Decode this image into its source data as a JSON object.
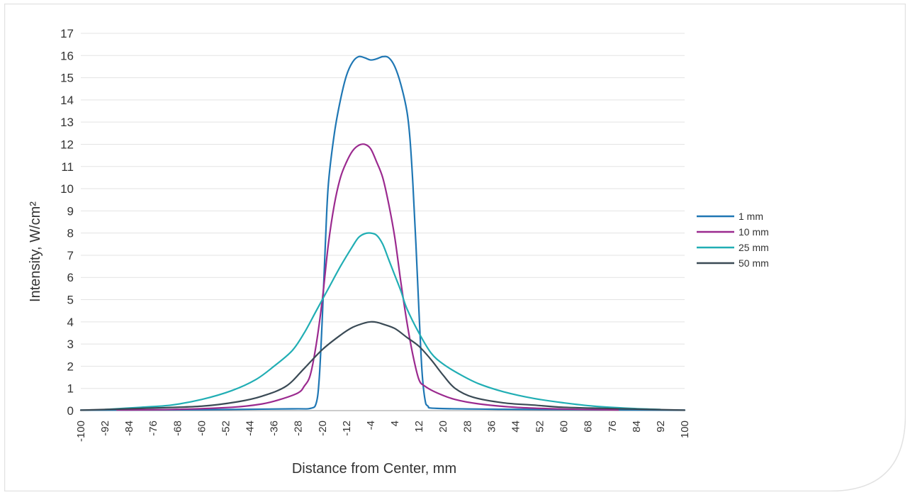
{
  "chart_data": {
    "type": "line",
    "title": "",
    "xlabel": "Distance from Center, mm",
    "ylabel": "Intensity, W/cm²",
    "xlim": [
      -100,
      100
    ],
    "ylim": [
      0,
      17
    ],
    "x_ticks": [
      -100,
      -92,
      -84,
      -76,
      -68,
      -60,
      -52,
      -44,
      -36,
      -28,
      -20,
      -12,
      -4,
      4,
      12,
      20,
      28,
      36,
      44,
      52,
      60,
      68,
      76,
      84,
      92,
      100
    ],
    "y_ticks": [
      0,
      1,
      2,
      3,
      4,
      5,
      6,
      7,
      8,
      9,
      10,
      11,
      12,
      13,
      14,
      15,
      16,
      17
    ],
    "grid": "horizontal",
    "legend_position": "right",
    "series": [
      {
        "name": "1 mm",
        "color": "#1F77B4",
        "points": [
          [
            -100,
            0.02
          ],
          [
            -60,
            0.04
          ],
          [
            -30,
            0.08
          ],
          [
            -24,
            0.1
          ],
          [
            -22,
            0.35
          ],
          [
            -21,
            1.5
          ],
          [
            -20,
            4.2
          ],
          [
            -19,
            7.5
          ],
          [
            -18,
            10.2
          ],
          [
            -16,
            12.5
          ],
          [
            -14,
            14.0
          ],
          [
            -12,
            15.1
          ],
          [
            -10,
            15.7
          ],
          [
            -8,
            15.95
          ],
          [
            -6,
            15.9
          ],
          [
            -4,
            15.8
          ],
          [
            -2,
            15.85
          ],
          [
            0,
            15.95
          ],
          [
            2,
            15.9
          ],
          [
            4,
            15.5
          ],
          [
            6,
            14.7
          ],
          [
            8,
            13.5
          ],
          [
            9,
            12.3
          ],
          [
            10,
            10.2
          ],
          [
            11,
            7.5
          ],
          [
            12,
            4.5
          ],
          [
            13,
            1.8
          ],
          [
            14,
            0.5
          ],
          [
            15,
            0.2
          ],
          [
            18,
            0.1
          ],
          [
            40,
            0.06
          ],
          [
            70,
            0.04
          ],
          [
            100,
            0.02
          ]
        ]
      },
      {
        "name": "10 mm",
        "color": "#9B2A8F",
        "points": [
          [
            -88,
            0.03
          ],
          [
            -70,
            0.05
          ],
          [
            -50,
            0.15
          ],
          [
            -40,
            0.3
          ],
          [
            -34,
            0.5
          ],
          [
            -28,
            0.8
          ],
          [
            -26,
            1.1
          ],
          [
            -24,
            1.6
          ],
          [
            -22,
            3.0
          ],
          [
            -20,
            5.0
          ],
          [
            -18,
            7.5
          ],
          [
            -16,
            9.3
          ],
          [
            -14,
            10.5
          ],
          [
            -12,
            11.2
          ],
          [
            -10,
            11.7
          ],
          [
            -8,
            11.95
          ],
          [
            -6,
            12.0
          ],
          [
            -4,
            11.8
          ],
          [
            -2,
            11.2
          ],
          [
            0,
            10.5
          ],
          [
            2,
            9.3
          ],
          [
            4,
            7.8
          ],
          [
            6,
            5.8
          ],
          [
            8,
            4.0
          ],
          [
            10,
            2.5
          ],
          [
            12,
            1.4
          ],
          [
            14,
            1.1
          ],
          [
            18,
            0.8
          ],
          [
            24,
            0.5
          ],
          [
            32,
            0.3
          ],
          [
            44,
            0.15
          ],
          [
            60,
            0.07
          ],
          [
            78,
            0.03
          ]
        ]
      },
      {
        "name": "25 mm",
        "color": "#21AEB4",
        "points": [
          [
            -92,
            0.05
          ],
          [
            -80,
            0.15
          ],
          [
            -70,
            0.25
          ],
          [
            -60,
            0.5
          ],
          [
            -50,
            0.9
          ],
          [
            -42,
            1.4
          ],
          [
            -36,
            2.0
          ],
          [
            -30,
            2.7
          ],
          [
            -26,
            3.5
          ],
          [
            -22,
            4.5
          ],
          [
            -18,
            5.5
          ],
          [
            -14,
            6.5
          ],
          [
            -10,
            7.4
          ],
          [
            -8,
            7.8
          ],
          [
            -6,
            7.97
          ],
          [
            -4,
            8.0
          ],
          [
            -2,
            7.9
          ],
          [
            0,
            7.5
          ],
          [
            2,
            6.8
          ],
          [
            4,
            6.1
          ],
          [
            6,
            5.4
          ],
          [
            8,
            4.6
          ],
          [
            12,
            3.5
          ],
          [
            16,
            2.6
          ],
          [
            20,
            2.1
          ],
          [
            26,
            1.6
          ],
          [
            32,
            1.2
          ],
          [
            40,
            0.85
          ],
          [
            50,
            0.55
          ],
          [
            60,
            0.35
          ],
          [
            70,
            0.2
          ],
          [
            82,
            0.1
          ],
          [
            92,
            0.05
          ]
        ]
      },
      {
        "name": "50 mm",
        "color": "#3A4A55",
        "points": [
          [
            -100,
            0.02
          ],
          [
            -80,
            0.1
          ],
          [
            -60,
            0.2
          ],
          [
            -48,
            0.4
          ],
          [
            -40,
            0.65
          ],
          [
            -32,
            1.1
          ],
          [
            -26,
            1.9
          ],
          [
            -20,
            2.75
          ],
          [
            -14,
            3.4
          ],
          [
            -10,
            3.75
          ],
          [
            -6,
            3.95
          ],
          [
            -4,
            4.0
          ],
          [
            -2,
            3.98
          ],
          [
            0,
            3.9
          ],
          [
            4,
            3.7
          ],
          [
            8,
            3.3
          ],
          [
            12,
            2.9
          ],
          [
            16,
            2.3
          ],
          [
            20,
            1.6
          ],
          [
            24,
            1.0
          ],
          [
            30,
            0.6
          ],
          [
            40,
            0.35
          ],
          [
            50,
            0.25
          ],
          [
            60,
            0.15
          ],
          [
            80,
            0.08
          ],
          [
            100,
            0.02
          ]
        ]
      }
    ]
  }
}
